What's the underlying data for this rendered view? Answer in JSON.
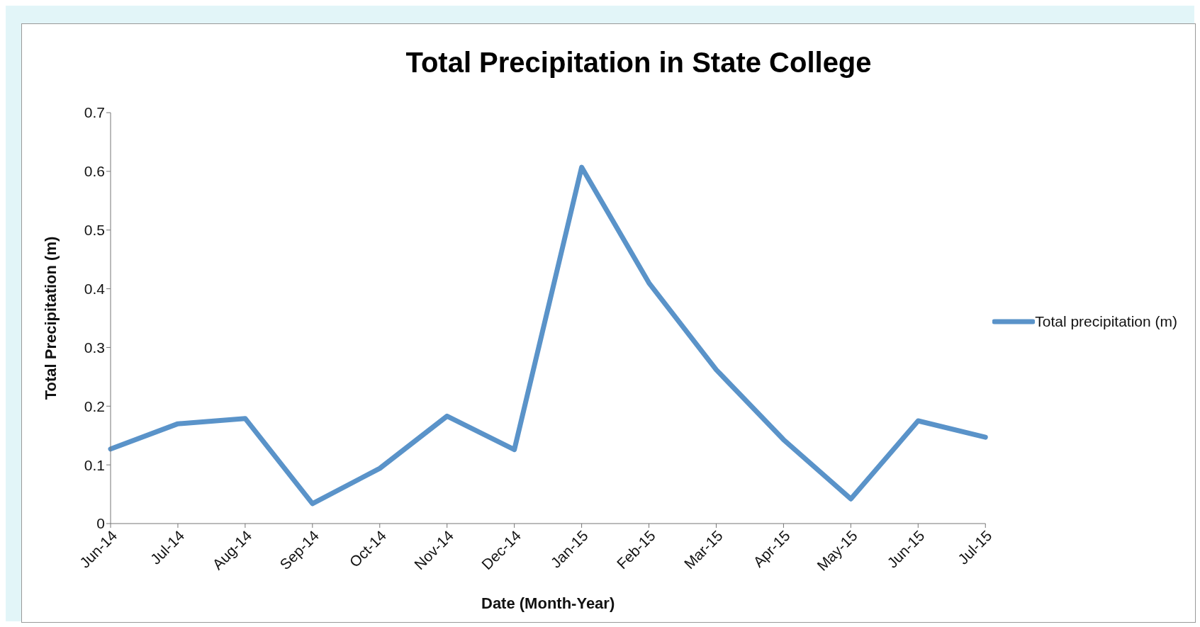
{
  "chart_data": {
    "type": "line",
    "title": "Total Precipitation in State College",
    "xlabel": "Date (Month-Year)",
    "ylabel": "Total Precipitation (m)",
    "categories": [
      "Jun-14",
      "Jul-14",
      "Aug-14",
      "Sep-14",
      "Oct-14",
      "Nov-14",
      "Dec-14",
      "Jan-15",
      "Feb-15",
      "Mar-15",
      "Apr-15",
      "May-15",
      "Jun-15",
      "Jul-15"
    ],
    "series": [
      {
        "name": "Total precipitation (m)",
        "color": "#5a93c9",
        "values": [
          0.127,
          0.17,
          0.179,
          0.034,
          0.094,
          0.183,
          0.126,
          0.607,
          0.41,
          0.262,
          0.143,
          0.042,
          0.175,
          0.147
        ]
      }
    ],
    "ylim": [
      0,
      0.7
    ],
    "yticks": [
      0,
      0.1,
      0.2,
      0.3,
      0.4,
      0.5,
      0.6,
      0.7
    ],
    "grid": false,
    "legend": "right",
    "marker": "none",
    "line_style": "solid"
  }
}
